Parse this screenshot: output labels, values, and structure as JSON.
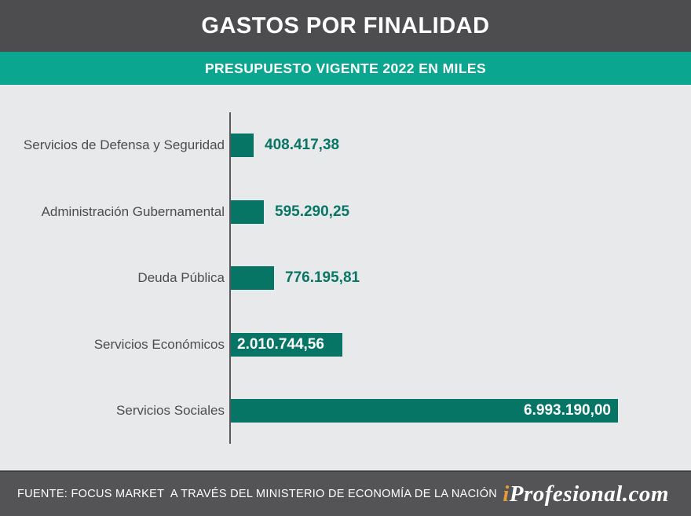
{
  "title": "GASTOS POR FINALIDAD",
  "subtitle": "PRESUPUESTO VIGENTE 2022 EN MILES",
  "footer": {
    "source": "FUENTE: FOCUS MARKET  A TRAVÉS DEL MINISTERIO DE ECONOMÍA DE LA NACIÓN",
    "logo_accent_part": "i",
    "logo_rest_part": "Profesional.com"
  },
  "colors": {
    "header_bg": "#4d4d4f",
    "subtitle_bg": "#0ba690",
    "chart_bg": "#e8e9ea",
    "bar": "#077565",
    "value_text": "#087565",
    "label_text": "#4d4d4f",
    "footer_bg": "#545456",
    "axis": "#58585a",
    "logo_accent": "#e39b3c"
  },
  "chart_data": {
    "type": "bar",
    "orientation": "horizontal",
    "title": "GASTOS POR FINALIDAD",
    "subtitle": "PRESUPUESTO VIGENTE 2022 EN MILES",
    "categories": [
      "Servicios de Defensa y Seguridad",
      "Administración Gubernamental",
      "Deuda Pública",
      "Servicios Económicos",
      "Servicios Sociales"
    ],
    "values": [
      408417.38,
      595290.25,
      776195.81,
      2010744.56,
      6993190.0
    ],
    "value_labels": [
      "408.417,38",
      "595.290,25",
      "776.195,81",
      "2.010.744,56",
      "6.993.190,00"
    ],
    "value_label_positions": [
      "outside",
      "outside",
      "outside",
      "inside-left",
      "inside-right"
    ],
    "xlim": [
      0,
      6993190
    ],
    "grid": false,
    "legend": false
  }
}
